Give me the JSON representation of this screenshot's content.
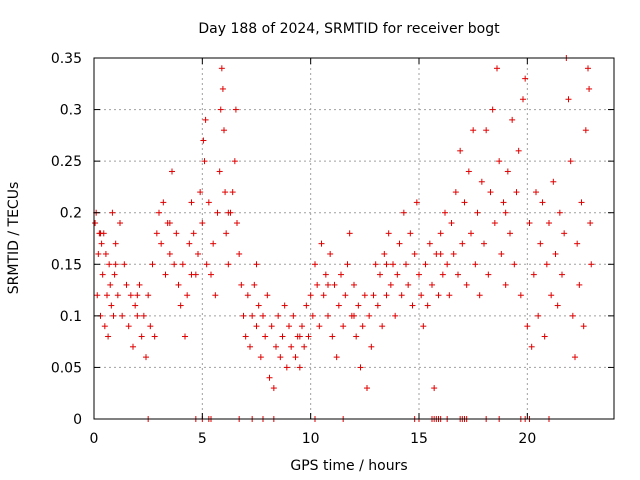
{
  "chart_data": {
    "type": "scatter",
    "title": "Day 188 of 2024, SRMTID for receiver bogt",
    "xlabel": "GPS time / hours",
    "ylabel": "SRMTID / TECUs",
    "xlim": [
      0,
      24
    ],
    "ylim": [
      0,
      0.35
    ],
    "xticks": [
      0,
      5,
      10,
      15,
      20
    ],
    "xtick_labels": [
      "0",
      "5",
      "10",
      "15",
      "20"
    ],
    "yticks": [
      0,
      0.05,
      0.1,
      0.15,
      0.2,
      0.25,
      0.3,
      0.35
    ],
    "ytick_labels": [
      "0",
      "0.05",
      "0.1",
      "0.15",
      "0.2",
      "0.25",
      "0.3",
      "0.35"
    ],
    "grid": true,
    "marker": "+",
    "color": "#e00000",
    "series": [
      {
        "name": "SRMTID",
        "points": [
          [
            0.05,
            0.19
          ],
          [
            0.1,
            0.2
          ],
          [
            0.15,
            0.12
          ],
          [
            0.2,
            0.16
          ],
          [
            0.25,
            0.18
          ],
          [
            0.3,
            0.1
          ],
          [
            0.35,
            0.17
          ],
          [
            0.4,
            0.14
          ],
          [
            0.45,
            0.18
          ],
          [
            0.5,
            0.09
          ],
          [
            0.55,
            0.16
          ],
          [
            0.6,
            0.12
          ],
          [
            0.65,
            0.08
          ],
          [
            0.7,
            0.15
          ],
          [
            0.75,
            0.13
          ],
          [
            0.8,
            0.11
          ],
          [
            0.85,
            0.2
          ],
          [
            0.9,
            0.1
          ],
          [
            0.95,
            0.14
          ],
          [
            1.0,
            0.17
          ],
          [
            1.1,
            0.12
          ],
          [
            1.2,
            0.19
          ],
          [
            1.3,
            0.1
          ],
          [
            1.4,
            0.15
          ],
          [
            1.5,
            0.13
          ],
          [
            1.6,
            0.09
          ],
          [
            1.7,
            0.12
          ],
          [
            1.8,
            0.07
          ],
          [
            1.9,
            0.11
          ],
          [
            2.0,
            0.1
          ],
          [
            2.1,
            0.13
          ],
          [
            2.2,
            0.08
          ],
          [
            2.3,
            0.1
          ],
          [
            2.4,
            0.06
          ],
          [
            2.5,
            0.12
          ],
          [
            2.6,
            0.09
          ],
          [
            2.7,
            0.15
          ],
          [
            2.8,
            0.08
          ],
          [
            2.9,
            0.18
          ],
          [
            3.0,
            0.2
          ],
          [
            3.1,
            0.17
          ],
          [
            3.2,
            0.21
          ],
          [
            3.3,
            0.14
          ],
          [
            3.4,
            0.19
          ],
          [
            3.5,
            0.16
          ],
          [
            3.6,
            0.24
          ],
          [
            3.7,
            0.15
          ],
          [
            3.8,
            0.18
          ],
          [
            3.9,
            0.13
          ],
          [
            4.0,
            0.11
          ],
          [
            4.1,
            0.15
          ],
          [
            4.2,
            0.08
          ],
          [
            4.3,
            0.12
          ],
          [
            4.4,
            0.17
          ],
          [
            4.5,
            0.21
          ],
          [
            4.6,
            0.18
          ],
          [
            4.7,
            0.14
          ],
          [
            4.8,
            0.16
          ],
          [
            4.9,
            0.22
          ],
          [
            5.0,
            0.19
          ],
          [
            5.05,
            0.27
          ],
          [
            5.1,
            0.25
          ],
          [
            5.15,
            0.29
          ],
          [
            5.2,
            0.15
          ],
          [
            5.3,
            0.21
          ],
          [
            5.4,
            0.14
          ],
          [
            5.5,
            0.17
          ],
          [
            5.6,
            0.12
          ],
          [
            5.7,
            0.2
          ],
          [
            5.8,
            0.24
          ],
          [
            5.85,
            0.3
          ],
          [
            5.9,
            0.34
          ],
          [
            5.95,
            0.32
          ],
          [
            6.0,
            0.28
          ],
          [
            6.05,
            0.22
          ],
          [
            6.1,
            0.18
          ],
          [
            6.2,
            0.15
          ],
          [
            6.3,
            0.2
          ],
          [
            6.4,
            0.22
          ],
          [
            6.5,
            0.25
          ],
          [
            6.55,
            0.3
          ],
          [
            6.6,
            0.19
          ],
          [
            6.7,
            0.16
          ],
          [
            6.8,
            0.13
          ],
          [
            6.9,
            0.1
          ],
          [
            7.0,
            0.08
          ],
          [
            7.1,
            0.12
          ],
          [
            7.2,
            0.07
          ],
          [
            7.3,
            0.1
          ],
          [
            7.4,
            0.13
          ],
          [
            7.5,
            0.09
          ],
          [
            7.6,
            0.11
          ],
          [
            7.7,
            0.06
          ],
          [
            7.8,
            0.1
          ],
          [
            7.9,
            0.08
          ],
          [
            8.0,
            0.12
          ],
          [
            8.1,
            0.04
          ],
          [
            8.2,
            0.09
          ],
          [
            8.3,
            0.03
          ],
          [
            8.4,
            0.07
          ],
          [
            8.5,
            0.1
          ],
          [
            8.6,
            0.06
          ],
          [
            8.7,
            0.08
          ],
          [
            8.8,
            0.11
          ],
          [
            8.9,
            0.05
          ],
          [
            9.0,
            0.09
          ],
          [
            9.1,
            0.07
          ],
          [
            9.2,
            0.1
          ],
          [
            9.3,
            0.06
          ],
          [
            9.4,
            0.08
          ],
          [
            9.5,
            0.05
          ],
          [
            9.6,
            0.09
          ],
          [
            9.7,
            0.07
          ],
          [
            9.8,
            0.11
          ],
          [
            9.9,
            0.08
          ],
          [
            10.0,
            0.12
          ],
          [
            10.1,
            0.1
          ],
          [
            10.2,
            0.15
          ],
          [
            10.3,
            0.13
          ],
          [
            10.4,
            0.09
          ],
          [
            10.5,
            0.17
          ],
          [
            10.6,
            0.12
          ],
          [
            10.7,
            0.14
          ],
          [
            10.8,
            0.1
          ],
          [
            10.9,
            0.16
          ],
          [
            11.0,
            0.08
          ],
          [
            11.1,
            0.13
          ],
          [
            11.2,
            0.06
          ],
          [
            11.3,
            0.11
          ],
          [
            11.4,
            0.14
          ],
          [
            11.5,
            0.09
          ],
          [
            11.6,
            0.12
          ],
          [
            11.7,
            0.15
          ],
          [
            11.8,
            0.18
          ],
          [
            11.9,
            0.1
          ],
          [
            12.0,
            0.13
          ],
          [
            12.1,
            0.08
          ],
          [
            12.2,
            0.11
          ],
          [
            12.3,
            0.05
          ],
          [
            12.4,
            0.09
          ],
          [
            12.5,
            0.12
          ],
          [
            12.6,
            0.03
          ],
          [
            12.7,
            0.1
          ],
          [
            12.8,
            0.07
          ],
          [
            12.9,
            0.12
          ],
          [
            13.0,
            0.15
          ],
          [
            13.1,
            0.11
          ],
          [
            13.2,
            0.14
          ],
          [
            13.3,
            0.09
          ],
          [
            13.4,
            0.16
          ],
          [
            13.5,
            0.12
          ],
          [
            13.6,
            0.18
          ],
          [
            13.7,
            0.13
          ],
          [
            13.8,
            0.15
          ],
          [
            13.9,
            0.1
          ],
          [
            14.0,
            0.14
          ],
          [
            14.1,
            0.17
          ],
          [
            14.2,
            0.12
          ],
          [
            14.3,
            0.2
          ],
          [
            14.4,
            0.15
          ],
          [
            14.5,
            0.13
          ],
          [
            14.6,
            0.18
          ],
          [
            14.7,
            0.11
          ],
          [
            14.8,
            0.16
          ],
          [
            14.9,
            0.21
          ],
          [
            15.0,
            0.14
          ],
          [
            15.1,
            0.12
          ],
          [
            15.2,
            0.09
          ],
          [
            15.3,
            0.15
          ],
          [
            15.4,
            0.11
          ],
          [
            15.5,
            0.17
          ],
          [
            15.6,
            0.13
          ],
          [
            15.7,
            0.03
          ],
          [
            15.8,
            0.16
          ],
          [
            15.9,
            0.12
          ],
          [
            16.0,
            0.18
          ],
          [
            16.1,
            0.14
          ],
          [
            16.2,
            0.2
          ],
          [
            16.3,
            0.15
          ],
          [
            16.4,
            0.12
          ],
          [
            16.5,
            0.19
          ],
          [
            16.6,
            0.16
          ],
          [
            16.7,
            0.22
          ],
          [
            16.8,
            0.14
          ],
          [
            16.9,
            0.26
          ],
          [
            17.0,
            0.17
          ],
          [
            17.1,
            0.21
          ],
          [
            17.2,
            0.13
          ],
          [
            17.3,
            0.24
          ],
          [
            17.4,
            0.18
          ],
          [
            17.5,
            0.28
          ],
          [
            17.6,
            0.15
          ],
          [
            17.7,
            0.2
          ],
          [
            17.8,
            0.12
          ],
          [
            17.9,
            0.23
          ],
          [
            18.0,
            0.17
          ],
          [
            18.1,
            0.28
          ],
          [
            18.2,
            0.14
          ],
          [
            18.3,
            0.22
          ],
          [
            18.4,
            0.3
          ],
          [
            18.5,
            0.19
          ],
          [
            18.6,
            0.34
          ],
          [
            18.7,
            0.25
          ],
          [
            18.8,
            0.16
          ],
          [
            18.9,
            0.21
          ],
          [
            19.0,
            0.13
          ],
          [
            19.1,
            0.24
          ],
          [
            19.2,
            0.18
          ],
          [
            19.3,
            0.29
          ],
          [
            19.4,
            0.15
          ],
          [
            19.5,
            0.22
          ],
          [
            19.6,
            0.26
          ],
          [
            19.7,
            0.12
          ],
          [
            19.8,
            0.31
          ],
          [
            19.9,
            0.33
          ],
          [
            20.0,
            0.09
          ],
          [
            20.1,
            0.19
          ],
          [
            20.2,
            0.07
          ],
          [
            20.3,
            0.14
          ],
          [
            20.4,
            0.22
          ],
          [
            20.5,
            0.1
          ],
          [
            20.6,
            0.17
          ],
          [
            20.7,
            0.21
          ],
          [
            20.8,
            0.08
          ],
          [
            20.9,
            0.15
          ],
          [
            21.0,
            0.19
          ],
          [
            21.1,
            0.12
          ],
          [
            21.2,
            0.23
          ],
          [
            21.3,
            0.16
          ],
          [
            21.4,
            0.11
          ],
          [
            21.5,
            0.2
          ],
          [
            21.6,
            0.14
          ],
          [
            21.7,
            0.18
          ],
          [
            21.8,
            0.35
          ],
          [
            21.9,
            0.31
          ],
          [
            22.0,
            0.25
          ],
          [
            22.1,
            0.1
          ],
          [
            22.2,
            0.06
          ],
          [
            22.3,
            0.17
          ],
          [
            22.4,
            0.13
          ],
          [
            22.5,
            0.21
          ],
          [
            22.6,
            0.09
          ],
          [
            22.7,
            0.28
          ],
          [
            22.8,
            0.34
          ],
          [
            22.85,
            0.32
          ],
          [
            22.9,
            0.19
          ],
          [
            22.95,
            0.15
          ],
          [
            0.3,
            0.18
          ],
          [
            1.0,
            0.15
          ],
          [
            2.0,
            0.12
          ],
          [
            3.5,
            0.19
          ],
          [
            4.5,
            0.14
          ],
          [
            6.2,
            0.2
          ],
          [
            7.5,
            0.15
          ],
          [
            9.5,
            0.08
          ],
          [
            10.8,
            0.13
          ],
          [
            12.0,
            0.1
          ],
          [
            13.5,
            0.15
          ],
          [
            16.0,
            0.16
          ],
          [
            19.0,
            0.2
          ]
        ],
        "zero_points_x": [
          2.5,
          4.7,
          5.0,
          5.3,
          5.4,
          6.7,
          7.3,
          7.8,
          8.3,
          10.2,
          11.5,
          14.8,
          15.0,
          15.6,
          15.7,
          15.8,
          15.9,
          16.0,
          16.3,
          16.9,
          17.0,
          17.1,
          17.2,
          18.1,
          18.7,
          19.7,
          19.9,
          20.1,
          21.0
        ]
      }
    ]
  }
}
